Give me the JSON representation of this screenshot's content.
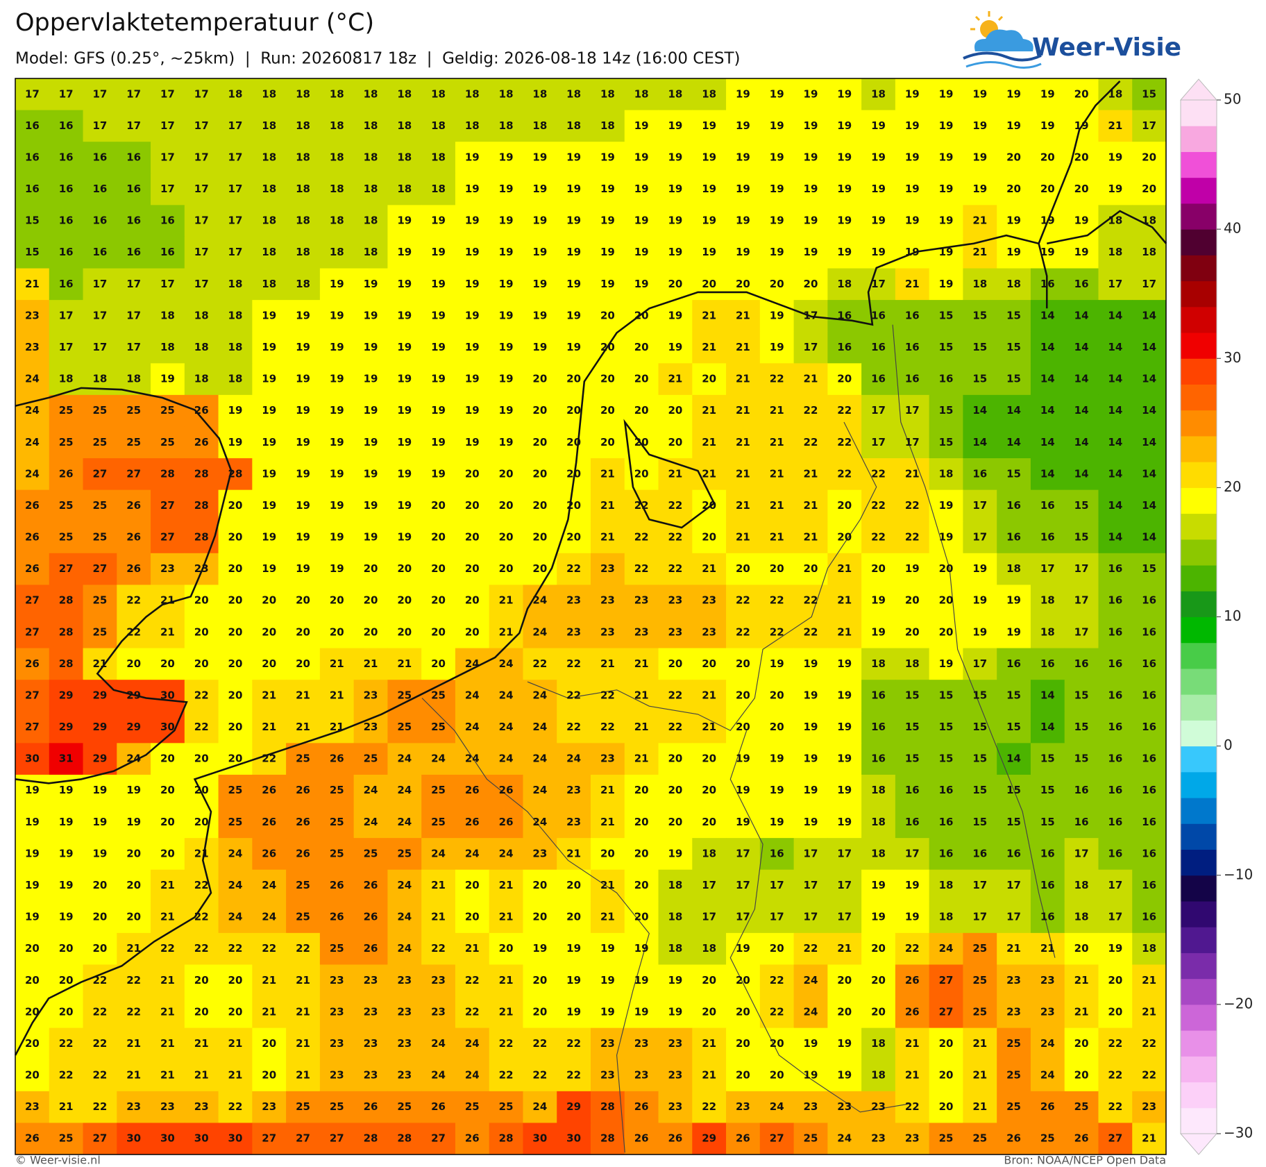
{
  "title": "Oppervlaktetemperatuur (°C)",
  "subtitle": "Model: GFS (0.25°, ~25km)  |  Run: 20260817 18z  |  Geldig: 2026-08-18 14z (16:00 CEST)",
  "logo": "Weer-Visie",
  "grid": {
    "rows": [
      [
        17,
        17,
        17,
        17,
        17,
        17,
        18,
        18,
        18,
        18,
        18,
        18,
        18,
        18,
        18,
        18,
        18,
        18,
        18,
        18,
        18,
        19,
        19,
        19,
        19,
        18,
        19,
        19,
        19,
        19,
        19,
        20,
        18,
        15
      ],
      [
        16,
        16,
        17,
        17,
        17,
        17,
        17,
        18,
        18,
        18,
        18,
        18,
        18,
        18,
        18,
        18,
        18,
        18,
        19,
        19,
        19,
        19,
        19,
        19,
        19,
        19,
        19,
        19,
        19,
        19,
        19,
        19,
        21,
        17
      ],
      [
        16,
        16,
        16,
        16,
        17,
        17,
        17,
        18,
        18,
        18,
        18,
        18,
        18,
        19,
        19,
        19,
        19,
        19,
        19,
        19,
        19,
        19,
        19,
        19,
        19,
        19,
        19,
        19,
        19,
        20,
        20,
        20,
        19,
        20
      ],
      [
        16,
        16,
        16,
        16,
        17,
        17,
        17,
        18,
        18,
        18,
        18,
        18,
        18,
        19,
        19,
        19,
        19,
        19,
        19,
        19,
        19,
        19,
        19,
        19,
        19,
        19,
        19,
        19,
        19,
        20,
        20,
        20,
        19,
        20
      ],
      [
        15,
        16,
        16,
        16,
        16,
        17,
        17,
        18,
        18,
        18,
        18,
        19,
        19,
        19,
        19,
        19,
        19,
        19,
        19,
        19,
        19,
        19,
        19,
        19,
        19,
        19,
        19,
        19,
        21,
        19,
        19,
        19,
        18,
        18
      ],
      [
        15,
        16,
        16,
        16,
        16,
        17,
        17,
        18,
        18,
        18,
        18,
        19,
        19,
        19,
        19,
        19,
        19,
        19,
        19,
        19,
        19,
        19,
        19,
        19,
        19,
        19,
        19,
        19,
        21,
        19,
        19,
        19,
        18,
        18
      ],
      [
        21,
        16,
        17,
        17,
        17,
        17,
        18,
        18,
        18,
        19,
        19,
        19,
        19,
        19,
        19,
        19,
        19,
        19,
        19,
        20,
        20,
        20,
        20,
        20,
        18,
        17,
        21,
        19,
        18,
        18,
        16,
        16,
        17,
        17
      ],
      [
        23,
        17,
        17,
        17,
        18,
        18,
        18,
        19,
        19,
        19,
        19,
        19,
        19,
        19,
        19,
        19,
        19,
        20,
        20,
        19,
        21,
        21,
        19,
        17,
        16,
        16,
        16,
        15,
        15,
        15,
        14,
        14,
        14,
        14
      ],
      [
        23,
        17,
        17,
        17,
        18,
        18,
        18,
        19,
        19,
        19,
        19,
        19,
        19,
        19,
        19,
        19,
        19,
        20,
        20,
        19,
        21,
        21,
        19,
        17,
        16,
        16,
        16,
        15,
        15,
        15,
        14,
        14,
        14,
        14
      ],
      [
        24,
        18,
        18,
        18,
        19,
        18,
        18,
        19,
        19,
        19,
        19,
        19,
        19,
        19,
        19,
        20,
        20,
        20,
        20,
        21,
        20,
        21,
        22,
        21,
        20,
        16,
        16,
        16,
        15,
        15,
        14,
        14,
        14,
        14
      ],
      [
        24,
        25,
        25,
        25,
        25,
        26,
        19,
        19,
        19,
        19,
        19,
        19,
        19,
        19,
        19,
        20,
        20,
        20,
        20,
        20,
        21,
        21,
        21,
        22,
        22,
        17,
        17,
        15,
        14,
        14,
        14,
        14,
        14,
        14
      ],
      [
        24,
        25,
        25,
        25,
        25,
        26,
        19,
        19,
        19,
        19,
        19,
        19,
        19,
        19,
        19,
        20,
        20,
        20,
        20,
        20,
        21,
        21,
        21,
        22,
        22,
        17,
        17,
        15,
        14,
        14,
        14,
        14,
        14,
        14
      ],
      [
        24,
        26,
        27,
        27,
        28,
        28,
        28,
        19,
        19,
        19,
        19,
        19,
        19,
        20,
        20,
        20,
        20,
        21,
        20,
        21,
        21,
        21,
        21,
        21,
        22,
        22,
        21,
        18,
        16,
        15,
        14,
        14,
        14,
        14
      ],
      [
        26,
        25,
        25,
        26,
        27,
        28,
        20,
        19,
        19,
        19,
        19,
        19,
        20,
        20,
        20,
        20,
        20,
        21,
        22,
        22,
        20,
        21,
        21,
        21,
        20,
        22,
        22,
        19,
        17,
        16,
        16,
        15,
        14,
        14
      ],
      [
        26,
        25,
        25,
        26,
        27,
        28,
        20,
        19,
        19,
        19,
        19,
        19,
        20,
        20,
        20,
        20,
        20,
        21,
        22,
        22,
        20,
        21,
        21,
        21,
        20,
        22,
        22,
        19,
        17,
        16,
        16,
        15,
        14,
        14
      ],
      [
        26,
        27,
        27,
        26,
        23,
        23,
        20,
        19,
        19,
        19,
        20,
        20,
        20,
        20,
        20,
        20,
        22,
        23,
        22,
        22,
        21,
        20,
        20,
        20,
        21,
        20,
        19,
        20,
        19,
        18,
        17,
        17,
        16,
        15
      ],
      [
        27,
        28,
        25,
        22,
        21,
        20,
        20,
        20,
        20,
        20,
        20,
        20,
        20,
        20,
        21,
        24,
        23,
        23,
        23,
        23,
        23,
        22,
        22,
        22,
        21,
        19,
        20,
        20,
        19,
        19,
        18,
        17,
        16,
        16
      ],
      [
        27,
        28,
        25,
        22,
        21,
        20,
        20,
        20,
        20,
        20,
        20,
        20,
        20,
        20,
        21,
        24,
        23,
        23,
        23,
        23,
        23,
        22,
        22,
        22,
        21,
        19,
        20,
        20,
        19,
        19,
        18,
        17,
        16,
        16
      ],
      [
        26,
        28,
        21,
        20,
        20,
        20,
        20,
        20,
        20,
        21,
        21,
        21,
        20,
        24,
        24,
        22,
        22,
        21,
        21,
        20,
        20,
        20,
        19,
        19,
        19,
        18,
        18,
        19,
        17,
        16,
        16,
        16,
        16,
        16
      ],
      [
        27,
        29,
        29,
        29,
        30,
        22,
        20,
        21,
        21,
        21,
        23,
        25,
        25,
        24,
        24,
        24,
        22,
        22,
        21,
        22,
        21,
        20,
        20,
        19,
        19,
        16,
        15,
        15,
        15,
        15,
        14,
        15,
        16,
        16
      ],
      [
        27,
        29,
        29,
        29,
        30,
        22,
        20,
        21,
        21,
        21,
        23,
        25,
        25,
        24,
        24,
        24,
        22,
        22,
        21,
        22,
        21,
        20,
        20,
        19,
        19,
        16,
        15,
        15,
        15,
        15,
        14,
        15,
        16,
        16
      ],
      [
        30,
        31,
        29,
        24,
        20,
        20,
        20,
        22,
        25,
        26,
        25,
        24,
        24,
        24,
        24,
        24,
        24,
        23,
        21,
        20,
        20,
        19,
        19,
        19,
        19,
        16,
        15,
        15,
        15,
        14,
        15,
        15,
        16,
        16
      ],
      [
        19,
        19,
        19,
        19,
        20,
        20,
        25,
        26,
        26,
        25,
        24,
        24,
        25,
        26,
        26,
        24,
        23,
        21,
        20,
        20,
        20,
        19,
        19,
        19,
        19,
        18,
        16,
        16,
        15,
        15,
        15,
        16,
        16,
        16
      ],
      [
        19,
        19,
        19,
        19,
        20,
        20,
        25,
        26,
        26,
        25,
        24,
        24,
        25,
        26,
        26,
        24,
        23,
        21,
        20,
        20,
        20,
        19,
        19,
        19,
        19,
        18,
        16,
        16,
        15,
        15,
        15,
        16,
        16,
        16
      ],
      [
        19,
        19,
        19,
        20,
        20,
        21,
        24,
        26,
        26,
        25,
        25,
        25,
        24,
        24,
        24,
        23,
        21,
        20,
        20,
        19,
        18,
        17,
        16,
        17,
        17,
        18,
        17,
        16,
        16,
        16,
        16,
        17,
        16,
        16
      ],
      [
        19,
        19,
        20,
        20,
        21,
        22,
        24,
        24,
        25,
        26,
        26,
        24,
        21,
        20,
        21,
        20,
        20,
        21,
        20,
        18,
        17,
        17,
        17,
        17,
        17,
        19,
        19,
        18,
        17,
        17,
        16,
        18,
        17,
        16
      ],
      [
        19,
        19,
        20,
        20,
        21,
        22,
        24,
        24,
        25,
        26,
        26,
        24,
        21,
        20,
        21,
        20,
        20,
        21,
        20,
        18,
        17,
        17,
        17,
        17,
        17,
        19,
        19,
        18,
        17,
        17,
        16,
        18,
        17,
        16
      ],
      [
        20,
        20,
        20,
        21,
        22,
        22,
        22,
        22,
        22,
        25,
        26,
        24,
        22,
        21,
        20,
        19,
        19,
        19,
        19,
        18,
        18,
        19,
        20,
        22,
        21,
        20,
        22,
        24,
        25,
        21,
        21,
        20,
        19,
        18
      ],
      [
        20,
        20,
        22,
        22,
        21,
        20,
        20,
        21,
        21,
        23,
        23,
        23,
        23,
        22,
        21,
        20,
        19,
        19,
        19,
        19,
        20,
        20,
        22,
        24,
        20,
        20,
        26,
        27,
        25,
        23,
        23,
        21,
        20,
        21
      ],
      [
        20,
        20,
        22,
        22,
        21,
        20,
        20,
        21,
        21,
        23,
        23,
        23,
        23,
        22,
        21,
        20,
        19,
        19,
        19,
        19,
        20,
        20,
        22,
        24,
        20,
        20,
        26,
        27,
        25,
        23,
        23,
        21,
        20,
        21
      ],
      [
        20,
        22,
        22,
        21,
        21,
        21,
        21,
        20,
        21,
        23,
        23,
        23,
        24,
        24,
        22,
        22,
        22,
        23,
        23,
        23,
        21,
        20,
        20,
        19,
        19,
        18,
        21,
        20,
        21,
        25,
        24,
        20,
        22,
        22
      ],
      [
        20,
        22,
        22,
        21,
        21,
        21,
        21,
        20,
        21,
        23,
        23,
        23,
        24,
        24,
        22,
        22,
        22,
        23,
        23,
        23,
        21,
        20,
        20,
        19,
        19,
        18,
        21,
        20,
        21,
        25,
        24,
        20,
        22,
        22
      ],
      [
        23,
        21,
        22,
        23,
        23,
        23,
        22,
        23,
        25,
        25,
        26,
        25,
        26,
        25,
        25,
        24,
        29,
        28,
        26,
        23,
        22,
        23,
        24,
        23,
        23,
        23,
        22,
        20,
        21,
        25,
        26,
        25,
        22,
        23
      ],
      [
        26,
        25,
        27,
        30,
        30,
        30,
        30,
        27,
        27,
        27,
        28,
        28,
        27,
        26,
        28,
        30,
        30,
        28,
        26,
        26,
        29,
        26,
        27,
        25,
        24,
        23,
        23,
        25,
        25,
        26,
        25,
        26,
        27,
        21
      ]
    ]
  },
  "colorbar": {
    "lim": [
      -30,
      50
    ],
    "ticks": [
      50,
      40,
      30,
      20,
      10,
      0,
      {
        "value": -10,
        "label": "−10"
      },
      {
        "value": -20,
        "label": "−20"
      },
      {
        "value": -30,
        "label": "−30"
      }
    ],
    "colors": [
      "#fde8fc",
      "#fcd0f8",
      "#f6b4f0",
      "#e890e8",
      "#cc66d8",
      "#a848c4",
      "#7a2caa",
      "#501890",
      "#300870",
      "#140448",
      "#001e80",
      "#0048a8",
      "#0078cc",
      "#00a8e8",
      "#38c8fc",
      "#d0fcd8",
      "#a8eca8",
      "#78dc78",
      "#48cc48",
      "#00b800",
      "#189818",
      "#4cb400",
      "#8cc800",
      "#c8dc00",
      "#ffff00",
      "#ffdc00",
      "#ffb800",
      "#ff8c00",
      "#ff6400",
      "#ff4400",
      "#f00000",
      "#d00000",
      "#a80000",
      "#800010",
      "#500030",
      "#880068",
      "#c000a8",
      "#f050d8",
      "#f8a8e0",
      "#fde0f4"
    ]
  },
  "footer": {
    "left": "© Weer-visie.nl",
    "right": "Bron: NOAA/NCEP Open Data"
  }
}
